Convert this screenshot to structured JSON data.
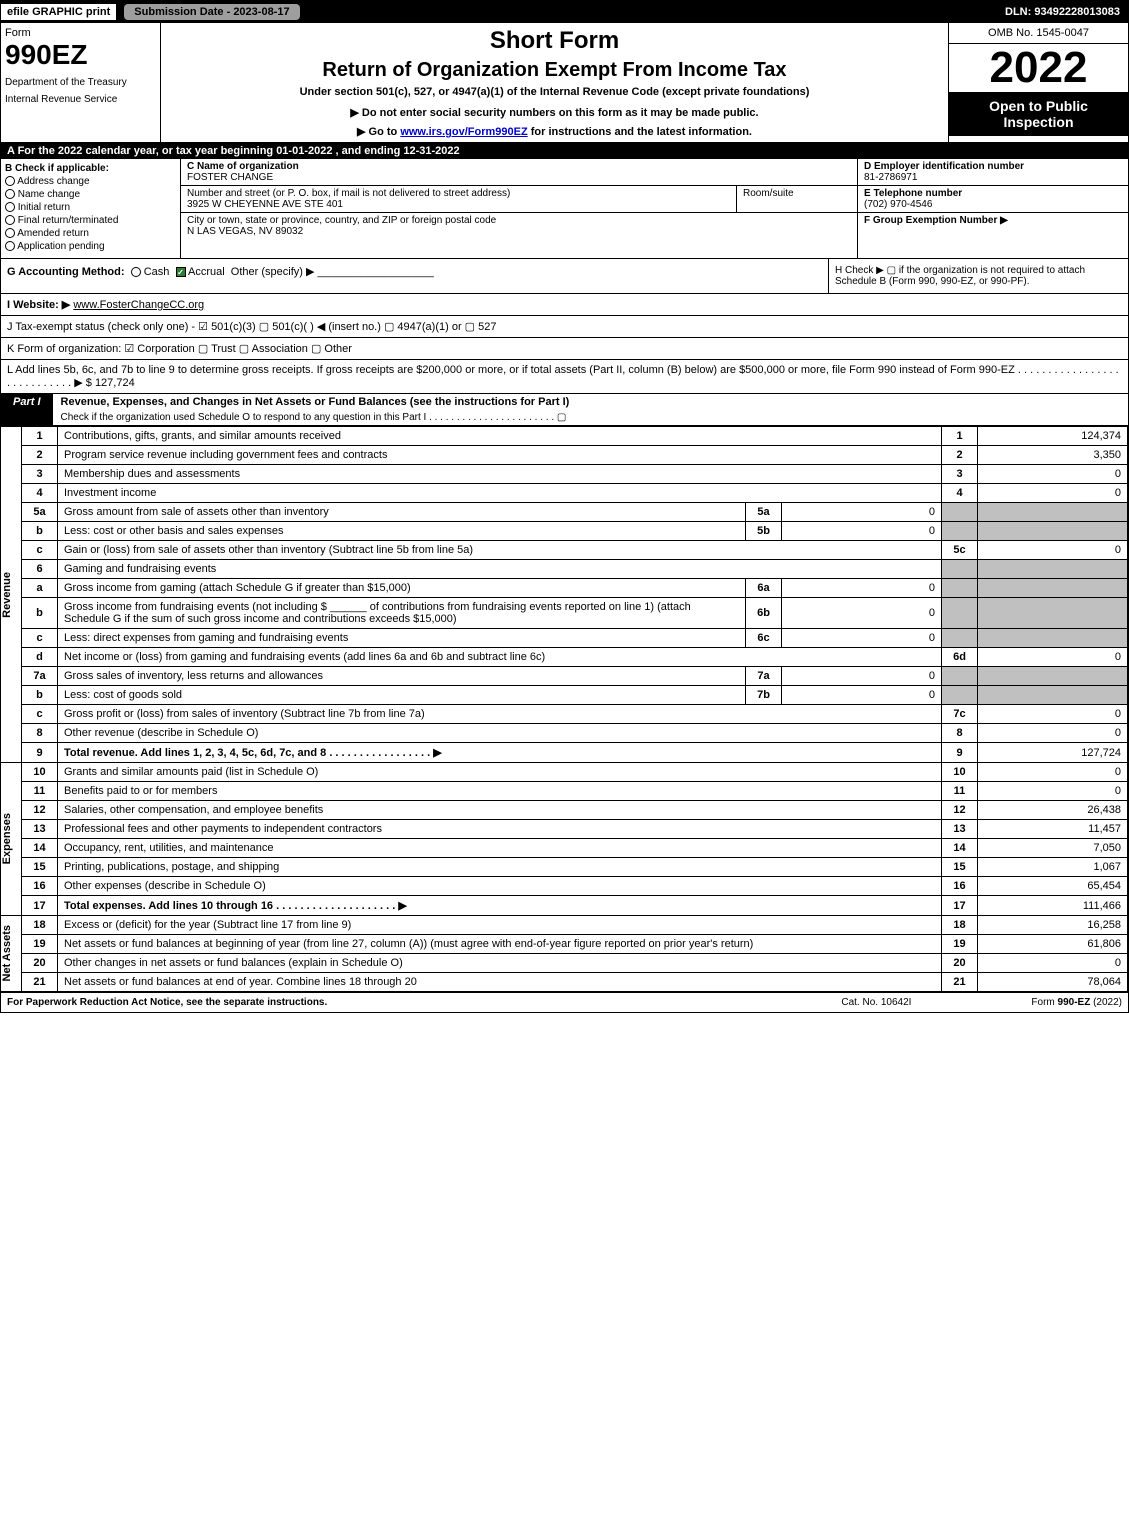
{
  "topbar": {
    "efile": "efile GRAPHIC print",
    "submission": "Submission Date - 2023-08-17",
    "dln": "DLN: 93492228013083"
  },
  "header": {
    "form_label": "Form",
    "form_number": "990EZ",
    "dept1": "Department of the Treasury",
    "dept2": "Internal Revenue Service",
    "title1": "Short Form",
    "title2": "Return of Organization Exempt From Income Tax",
    "under": "Under section 501(c), 527, or 4947(a)(1) of the Internal Revenue Code (except private foundations)",
    "donot": "▶ Do not enter social security numbers on this form as it may be made public.",
    "goto_pre": "▶ Go to ",
    "goto_link": "www.irs.gov/Form990EZ",
    "goto_post": " for instructions and the latest information.",
    "omb": "OMB No. 1545-0047",
    "year": "2022",
    "open": "Open to Public Inspection"
  },
  "section_a": "A  For the 2022 calendar year, or tax year beginning 01-01-2022 , and ending 12-31-2022",
  "section_b": {
    "label": "B  Check if applicable:",
    "items": [
      "Address change",
      "Name change",
      "Initial return",
      "Final return/terminated",
      "Amended return",
      "Application pending"
    ]
  },
  "section_c": {
    "name_lbl": "C Name of organization",
    "name": "FOSTER CHANGE",
    "street_lbl": "Number and street (or P. O. box, if mail is not delivered to street address)",
    "street": "3925 W CHEYENNE AVE STE 401",
    "room_lbl": "Room/suite",
    "city_lbl": "City or town, state or province, country, and ZIP or foreign postal code",
    "city": "N LAS VEGAS, NV  89032"
  },
  "section_d": {
    "lbl": "D Employer identification number",
    "val": "81-2786971"
  },
  "section_e": {
    "lbl": "E Telephone number",
    "val": "(702) 970-4546"
  },
  "section_f": {
    "lbl": "F Group Exemption Number ▶",
    "val": ""
  },
  "section_g": {
    "lbl": "G Accounting Method:",
    "cash": "Cash",
    "accrual": "Accrual",
    "other": "Other (specify) ▶"
  },
  "section_h": {
    "text": "H  Check ▶ ▢ if the organization is not required to attach Schedule B (Form 990, 990-EZ, or 990-PF)."
  },
  "section_i": {
    "lbl": "I Website: ▶",
    "val": "www.FosterChangeCC.org"
  },
  "section_j": {
    "text": "J Tax-exempt status (check only one) - ☑ 501(c)(3)  ▢ 501(c)(  ) ◀ (insert no.)  ▢ 4947(a)(1) or  ▢ 527"
  },
  "section_k": {
    "text": "K Form of organization:  ☑ Corporation   ▢ Trust   ▢ Association   ▢ Other"
  },
  "section_l": {
    "text": "L Add lines 5b, 6c, and 7b to line 9 to determine gross receipts. If gross receipts are $200,000 or more, or if total assets (Part II, column (B) below) are $500,000 or more, file Form 990 instead of Form 990-EZ . . . . . . . . . . . . . . . . . . . . . . . . . . . . ▶ $",
    "val": "127,724"
  },
  "part1": {
    "tab": "Part I",
    "title": "Revenue, Expenses, and Changes in Net Assets or Fund Balances (see the instructions for Part I)",
    "sub": "Check if the organization used Schedule O to respond to any question in this Part I . . . . . . . . . . . . . . . . . . . . . . . ▢"
  },
  "vlabels": {
    "revenue": "Revenue",
    "expenses": "Expenses",
    "netassets": "Net Assets"
  },
  "lines": {
    "l1": {
      "n": "1",
      "d": "Contributions, gifts, grants, and similar amounts received",
      "r": "1",
      "v": "124,374"
    },
    "l2": {
      "n": "2",
      "d": "Program service revenue including government fees and contracts",
      "r": "2",
      "v": "3,350"
    },
    "l3": {
      "n": "3",
      "d": "Membership dues and assessments",
      "r": "3",
      "v": "0"
    },
    "l4": {
      "n": "4",
      "d": "Investment income",
      "r": "4",
      "v": "0"
    },
    "l5a": {
      "n": "5a",
      "d": "Gross amount from sale of assets other than inventory",
      "sn": "5a",
      "sv": "0"
    },
    "l5b": {
      "n": "b",
      "d": "Less: cost or other basis and sales expenses",
      "sn": "5b",
      "sv": "0"
    },
    "l5c": {
      "n": "c",
      "d": "Gain or (loss) from sale of assets other than inventory (Subtract line 5b from line 5a)",
      "r": "5c",
      "v": "0"
    },
    "l6": {
      "n": "6",
      "d": "Gaming and fundraising events"
    },
    "l6a": {
      "n": "a",
      "d": "Gross income from gaming (attach Schedule G if greater than $15,000)",
      "sn": "6a",
      "sv": "0"
    },
    "l6b": {
      "n": "b",
      "d1": "Gross income from fundraising events (not including $",
      "d2": "of contributions from fundraising events reported on line 1) (attach Schedule G if the sum of such gross income and contributions exceeds $15,000)",
      "sn": "6b",
      "sv": "0"
    },
    "l6c": {
      "n": "c",
      "d": "Less: direct expenses from gaming and fundraising events",
      "sn": "6c",
      "sv": "0"
    },
    "l6d": {
      "n": "d",
      "d": "Net income or (loss) from gaming and fundraising events (add lines 6a and 6b and subtract line 6c)",
      "r": "6d",
      "v": "0"
    },
    "l7a": {
      "n": "7a",
      "d": "Gross sales of inventory, less returns and allowances",
      "sn": "7a",
      "sv": "0"
    },
    "l7b": {
      "n": "b",
      "d": "Less: cost of goods sold",
      "sn": "7b",
      "sv": "0"
    },
    "l7c": {
      "n": "c",
      "d": "Gross profit or (loss) from sales of inventory (Subtract line 7b from line 7a)",
      "r": "7c",
      "v": "0"
    },
    "l8": {
      "n": "8",
      "d": "Other revenue (describe in Schedule O)",
      "r": "8",
      "v": "0"
    },
    "l9": {
      "n": "9",
      "d": "Total revenue. Add lines 1, 2, 3, 4, 5c, 6d, 7c, and 8  . . . . . . . . . . . . . . . . . ▶",
      "r": "9",
      "v": "127,724"
    },
    "l10": {
      "n": "10",
      "d": "Grants and similar amounts paid (list in Schedule O)",
      "r": "10",
      "v": "0"
    },
    "l11": {
      "n": "11",
      "d": "Benefits paid to or for members",
      "r": "11",
      "v": "0"
    },
    "l12": {
      "n": "12",
      "d": "Salaries, other compensation, and employee benefits",
      "r": "12",
      "v": "26,438"
    },
    "l13": {
      "n": "13",
      "d": "Professional fees and other payments to independent contractors",
      "r": "13",
      "v": "11,457"
    },
    "l14": {
      "n": "14",
      "d": "Occupancy, rent, utilities, and maintenance",
      "r": "14",
      "v": "7,050"
    },
    "l15": {
      "n": "15",
      "d": "Printing, publications, postage, and shipping",
      "r": "15",
      "v": "1,067"
    },
    "l16": {
      "n": "16",
      "d": "Other expenses (describe in Schedule O)",
      "r": "16",
      "v": "65,454"
    },
    "l17": {
      "n": "17",
      "d": "Total expenses. Add lines 10 through 16  . . . . . . . . . . . . . . . . . . . . ▶",
      "r": "17",
      "v": "111,466"
    },
    "l18": {
      "n": "18",
      "d": "Excess or (deficit) for the year (Subtract line 17 from line 9)",
      "r": "18",
      "v": "16,258"
    },
    "l19": {
      "n": "19",
      "d": "Net assets or fund balances at beginning of year (from line 27, column (A)) (must agree with end-of-year figure reported on prior year's return)",
      "r": "19",
      "v": "61,806"
    },
    "l20": {
      "n": "20",
      "d": "Other changes in net assets or fund balances (explain in Schedule O)",
      "r": "20",
      "v": "0"
    },
    "l21": {
      "n": "21",
      "d": "Net assets or fund balances at end of year. Combine lines 18 through 20",
      "r": "21",
      "v": "78,064"
    }
  },
  "footer": {
    "paperwork": "For Paperwork Reduction Act Notice, see the separate instructions.",
    "catno": "Cat. No. 10642I",
    "formfoot": "Form 990-EZ (2022)"
  }
}
